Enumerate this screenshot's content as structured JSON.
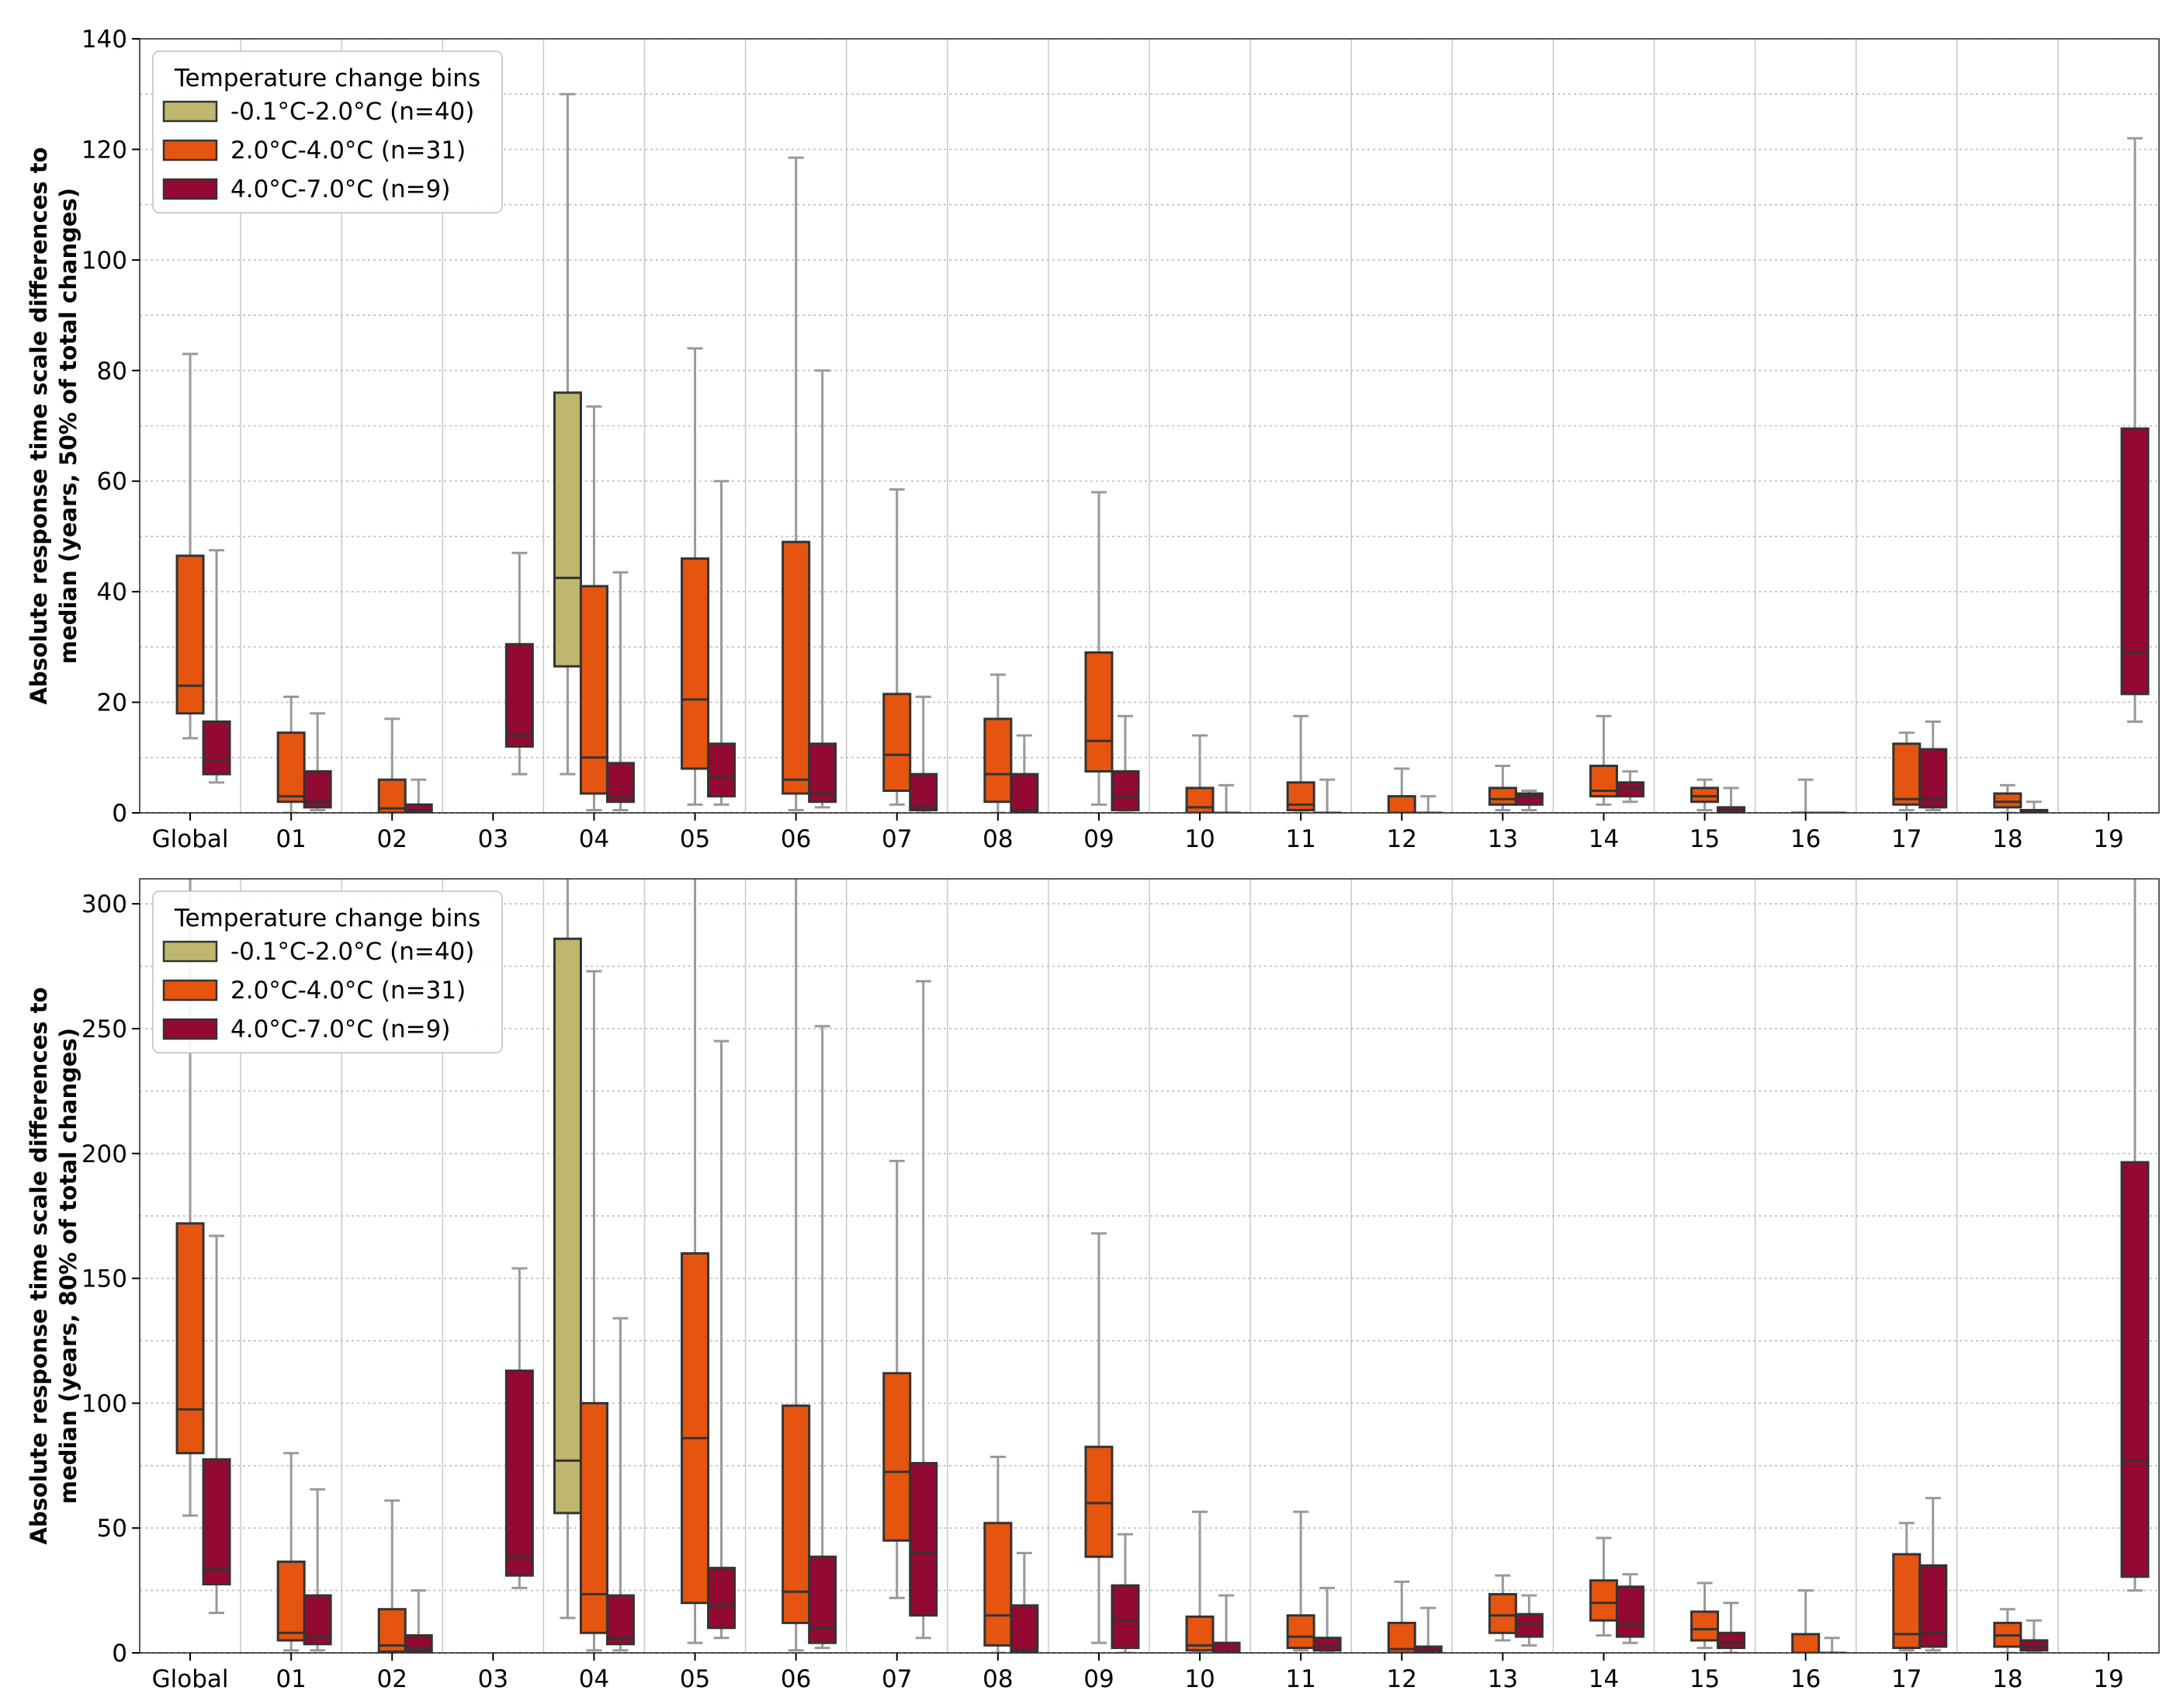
{
  "legend": {
    "title": "Temperature change bins",
    "entries": [
      {
        "label": "-0.1°C-2.0°C (n=40)",
        "color": "#bfb76e"
      },
      {
        "label": "2.0°C-4.0°C (n=31)",
        "color": "#e5550f"
      },
      {
        "label": "4.0°C-7.0°C (n=9)",
        "color": "#920a31"
      }
    ]
  },
  "colors": {
    "edge": "#333333",
    "whisker": "#999999",
    "grid": "#c8c8c8"
  },
  "chart_data": [
    {
      "type": "box",
      "ylabel_line1": "Absolute response time scale differences to",
      "ylabel_line2": "median (years, 50% of total changes)",
      "ylim": [
        0,
        140
      ],
      "yticks": [
        0,
        20,
        40,
        60,
        80,
        100,
        120,
        140
      ],
      "categories": [
        "Global",
        "01",
        "02",
        "03",
        "04",
        "05",
        "06",
        "07",
        "08",
        "09",
        "10",
        "11",
        "12",
        "13",
        "14",
        "15",
        "16",
        "17",
        "18",
        "19"
      ],
      "grid": true,
      "legend_position": "top-left",
      "series": [
        {
          "name": "-0.1°C-2.0°C (n=40)",
          "boxes": [
            null,
            null,
            null,
            null,
            {
              "lw": 7,
              "q1": 26.5,
              "med": 42.5,
              "q3": 76,
              "hw": 130
            },
            null,
            null,
            null,
            null,
            null,
            null,
            null,
            null,
            null,
            null,
            null,
            null,
            null,
            null,
            null
          ]
        },
        {
          "name": "2.0°C-4.0°C (n=31)",
          "boxes": [
            {
              "lw": 13.5,
              "q1": 18,
              "med": 23,
              "q3": 46.5,
              "hw": 83
            },
            {
              "lw": 0,
              "q1": 2,
              "med": 3,
              "q3": 14.5,
              "hw": 21
            },
            {
              "lw": 0,
              "q1": 0,
              "med": 0.8,
              "q3": 6,
              "hw": 17
            },
            null,
            {
              "lw": 0.5,
              "q1": 3.5,
              "med": 10,
              "q3": 41,
              "hw": 73.5
            },
            {
              "lw": 1.5,
              "q1": 8,
              "med": 20.5,
              "q3": 46,
              "hw": 84
            },
            {
              "lw": 0.5,
              "q1": 3.5,
              "med": 6,
              "q3": 49,
              "hw": 118.5
            },
            {
              "lw": 1.5,
              "q1": 4,
              "med": 10.5,
              "q3": 21.5,
              "hw": 58.5
            },
            {
              "lw": 0,
              "q1": 2,
              "med": 7,
              "q3": 17,
              "hw": 25
            },
            {
              "lw": 1.5,
              "q1": 7.5,
              "med": 13,
              "q3": 29,
              "hw": 58
            },
            {
              "lw": 0,
              "q1": 0,
              "med": 1,
              "q3": 4.5,
              "hw": 14
            },
            {
              "lw": 0,
              "q1": 0.5,
              "med": 1.5,
              "q3": 5.5,
              "hw": 17.5
            },
            {
              "lw": 0,
              "q1": 0,
              "med": 0,
              "q3": 3,
              "hw": 8
            },
            {
              "lw": 0.5,
              "q1": 1.5,
              "med": 2.5,
              "q3": 4.5,
              "hw": 8.5
            },
            {
              "lw": 1.5,
              "q1": 3,
              "med": 4,
              "q3": 8.5,
              "hw": 17.5
            },
            {
              "lw": 0.5,
              "q1": 2,
              "med": 3,
              "q3": 4.5,
              "hw": 6
            },
            {
              "lw": 0,
              "q1": 0,
              "med": 0,
              "q3": 0,
              "hw": 6
            },
            {
              "lw": 0.5,
              "q1": 1.5,
              "med": 2.5,
              "q3": 12.5,
              "hw": 14.5
            },
            {
              "lw": 0,
              "q1": 1,
              "med": 2,
              "q3": 3.5,
              "hw": 5
            },
            null
          ]
        },
        {
          "name": "4.0°C-7.0°C (n=9)",
          "boxes": [
            {
              "lw": 5.5,
              "q1": 7,
              "med": 9.5,
              "q3": 16.5,
              "hw": 47.5
            },
            {
              "lw": 0.5,
              "q1": 1,
              "med": 2,
              "q3": 7.5,
              "hw": 18
            },
            {
              "lw": 0,
              "q1": 0,
              "med": 0.5,
              "q3": 1.5,
              "hw": 6
            },
            {
              "lw": 7,
              "q1": 12,
              "med": 14,
              "q3": 30.5,
              "hw": 47
            },
            {
              "lw": 0.5,
              "q1": 2,
              "med": 3,
              "q3": 9,
              "hw": 43.5
            },
            {
              "lw": 1.5,
              "q1": 3,
              "med": 6.5,
              "q3": 12.5,
              "hw": 60
            },
            {
              "lw": 1,
              "q1": 2,
              "med": 3.5,
              "q3": 12.5,
              "hw": 80
            },
            {
              "lw": 0,
              "q1": 0.5,
              "med": 1,
              "q3": 7,
              "hw": 21
            },
            {
              "lw": 0,
              "q1": 0,
              "med": 0.5,
              "q3": 7,
              "hw": 14
            },
            {
              "lw": 0,
              "q1": 0.5,
              "med": 3,
              "q3": 7.5,
              "hw": 17.5
            },
            {
              "lw": 0,
              "q1": 0,
              "med": 0,
              "q3": 0,
              "hw": 5
            },
            {
              "lw": 0,
              "q1": 0,
              "med": 0,
              "q3": 0,
              "hw": 6
            },
            {
              "lw": 0,
              "q1": 0,
              "med": 0,
              "q3": 0,
              "hw": 3
            },
            {
              "lw": 0.5,
              "q1": 1.5,
              "med": 3,
              "q3": 3.5,
              "hw": 4
            },
            {
              "lw": 2,
              "q1": 3,
              "med": 4.5,
              "q3": 5.5,
              "hw": 7.5
            },
            {
              "lw": 0,
              "q1": 0,
              "med": 0.5,
              "q3": 1,
              "hw": 4.5
            },
            {
              "lw": 0,
              "q1": 0,
              "med": 0,
              "q3": 0,
              "hw": 0
            },
            {
              "lw": 0.5,
              "q1": 1,
              "med": 2.5,
              "q3": 11.5,
              "hw": 16.5
            },
            {
              "lw": 0,
              "q1": 0,
              "med": 0,
              "q3": 0.5,
              "hw": 2
            },
            {
              "lw": 16.5,
              "q1": 21.5,
              "med": 29,
              "q3": 69.5,
              "hw": 122
            }
          ]
        }
      ]
    },
    {
      "type": "box",
      "ylabel_line1": "Absolute response time scale differences to",
      "ylabel_line2": "median (years, 80% of total changes)",
      "ylim": [
        0,
        310
      ],
      "yticks": [
        0,
        50,
        100,
        150,
        200,
        250,
        300
      ],
      "categories": [
        "Global",
        "01",
        "02",
        "03",
        "04",
        "05",
        "06",
        "07",
        "08",
        "09",
        "10",
        "11",
        "12",
        "13",
        "14",
        "15",
        "16",
        "17",
        "18",
        "19"
      ],
      "grid": true,
      "legend_position": "top-left",
      "series": [
        {
          "name": "-0.1°C-2.0°C (n=40)",
          "boxes": [
            null,
            null,
            null,
            null,
            {
              "lw": 14,
              "q1": 56,
              "med": 77,
              "q3": 286,
              "hw": 310
            },
            null,
            null,
            null,
            null,
            null,
            null,
            null,
            null,
            null,
            null,
            null,
            null,
            null,
            null,
            null
          ]
        },
        {
          "name": "2.0°C-4.0°C (n=31)",
          "boxes": [
            {
              "lw": 55,
              "q1": 80,
              "med": 97.5,
              "q3": 172,
              "hw": 310
            },
            {
              "lw": 1,
              "q1": 5,
              "med": 8,
              "q3": 36.5,
              "hw": 80
            },
            {
              "lw": 0,
              "q1": 0.5,
              "med": 3,
              "q3": 17.5,
              "hw": 61
            },
            null,
            {
              "lw": 1,
              "q1": 8,
              "med": 23.5,
              "q3": 100,
              "hw": 273
            },
            {
              "lw": 4,
              "q1": 20,
              "med": 86,
              "q3": 160,
              "hw": 310
            },
            {
              "lw": 1,
              "q1": 12,
              "med": 24.5,
              "q3": 99,
              "hw": 310
            },
            {
              "lw": 22,
              "q1": 45,
              "med": 72.5,
              "q3": 112,
              "hw": 197
            },
            {
              "lw": 0,
              "q1": 3,
              "med": 15,
              "q3": 52,
              "hw": 78.5
            },
            {
              "lw": 4,
              "q1": 38.5,
              "med": 60,
              "q3": 82.5,
              "hw": 168
            },
            {
              "lw": 0,
              "q1": 1,
              "med": 3,
              "q3": 14.5,
              "hw": 56.5
            },
            {
              "lw": 1,
              "q1": 2,
              "med": 6.5,
              "q3": 15,
              "hw": 56.5
            },
            {
              "lw": 0,
              "q1": 0,
              "med": 1.5,
              "q3": 12,
              "hw": 28.5
            },
            {
              "lw": 5,
              "q1": 8,
              "med": 15,
              "q3": 23.5,
              "hw": 31
            },
            {
              "lw": 7,
              "q1": 13,
              "med": 20,
              "q3": 29,
              "hw": 46
            },
            {
              "lw": 2,
              "q1": 5,
              "med": 9.5,
              "q3": 16.5,
              "hw": 28
            },
            {
              "lw": 0,
              "q1": 0,
              "med": 0,
              "q3": 7.5,
              "hw": 25
            },
            {
              "lw": 1,
              "q1": 2,
              "med": 7.5,
              "q3": 39.5,
              "hw": 52
            },
            {
              "lw": 0,
              "q1": 2.5,
              "med": 7,
              "q3": 12,
              "hw": 17.5
            },
            null
          ]
        },
        {
          "name": "4.0°C-7.0°C (n=9)",
          "boxes": [
            {
              "lw": 16,
              "q1": 27.5,
              "med": 33.5,
              "q3": 77.5,
              "hw": 167
            },
            {
              "lw": 1,
              "q1": 3.5,
              "med": 6.5,
              "q3": 23,
              "hw": 65.5
            },
            {
              "lw": 0,
              "q1": 0.5,
              "med": 2,
              "q3": 7,
              "hw": 25
            },
            {
              "lw": 26,
              "q1": 31,
              "med": 38.5,
              "q3": 113,
              "hw": 154
            },
            {
              "lw": 1,
              "q1": 3.5,
              "med": 6,
              "q3": 23,
              "hw": 134
            },
            {
              "lw": 6,
              "q1": 10,
              "med": 19,
              "q3": 34,
              "hw": 245
            },
            {
              "lw": 2,
              "q1": 4,
              "med": 10,
              "q3": 38.5,
              "hw": 251
            },
            {
              "lw": 6,
              "q1": 15,
              "med": 40,
              "q3": 76,
              "hw": 269
            },
            {
              "lw": 0,
              "q1": 0,
              "med": 1,
              "q3": 19,
              "hw": 40
            },
            {
              "lw": 0,
              "q1": 2,
              "med": 13,
              "q3": 27,
              "hw": 47.5
            },
            {
              "lw": 0,
              "q1": 0,
              "med": 0.5,
              "q3": 4,
              "hw": 23
            },
            {
              "lw": 0,
              "q1": 1,
              "med": 2.5,
              "q3": 6,
              "hw": 26
            },
            {
              "lw": 0,
              "q1": 0,
              "med": 1,
              "q3": 2.5,
              "hw": 18
            },
            {
              "lw": 3,
              "q1": 6.5,
              "med": 11.5,
              "q3": 15.5,
              "hw": 23
            },
            {
              "lw": 4,
              "q1": 6.5,
              "med": 11.5,
              "q3": 26.5,
              "hw": 31.5
            },
            {
              "lw": 0,
              "q1": 2,
              "med": 4,
              "q3": 8,
              "hw": 20
            },
            {
              "lw": 0,
              "q1": 0,
              "med": 0,
              "q3": 0,
              "hw": 6
            },
            {
              "lw": 1,
              "q1": 2.5,
              "med": 8,
              "q3": 35,
              "hw": 62
            },
            {
              "lw": 0,
              "q1": 1,
              "med": 2.5,
              "q3": 5,
              "hw": 13
            },
            {
              "lw": 25,
              "q1": 30.5,
              "med": 77,
              "q3": 196.5,
              "hw": 310
            }
          ]
        }
      ]
    }
  ]
}
